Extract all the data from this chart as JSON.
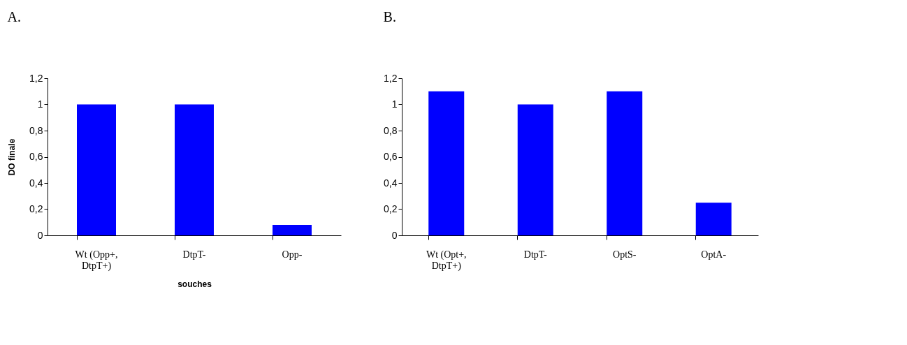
{
  "chart_data": [
    {
      "type": "bar",
      "title": "A.",
      "xlabel": "souches",
      "ylabel": "DO finale",
      "categories": [
        "Wt (Opp+, DtpT+)",
        "DtpT-",
        "Opp-"
      ],
      "values": [
        1.0,
        1.0,
        0.08
      ],
      "color": "#0000ff",
      "ylim": [
        0,
        1.2
      ],
      "yticks": [
        0,
        {
          "value": 0.2,
          "label": "0,2"
        },
        {
          "value": 0.4,
          "label": "0,4"
        },
        {
          "value": 0.6,
          "label": "0,6"
        },
        {
          "value": 0.8,
          "label": "0,8"
        },
        1,
        {
          "value": 1.2,
          "label": "1,2"
        }
      ],
      "grid": false
    },
    {
      "type": "bar",
      "title": "B.",
      "categories": [
        "Wt (Opt+, DtpT+)",
        "DtpT-",
        "OptS-",
        "OptA-"
      ],
      "values": [
        1.1,
        1.0,
        1.1,
        0.25
      ],
      "color": "#0000ff",
      "ylim": [
        0,
        1.2
      ],
      "yticks": [
        0,
        {
          "value": 0.2,
          "label": "0,2"
        },
        {
          "value": 0.4,
          "label": "0,4"
        },
        {
          "value": 0.6,
          "label": "0,6"
        },
        {
          "value": 0.8,
          "label": "0,8"
        },
        1,
        {
          "value": 1.2,
          "label": "1,2"
        }
      ],
      "grid": false
    }
  ]
}
